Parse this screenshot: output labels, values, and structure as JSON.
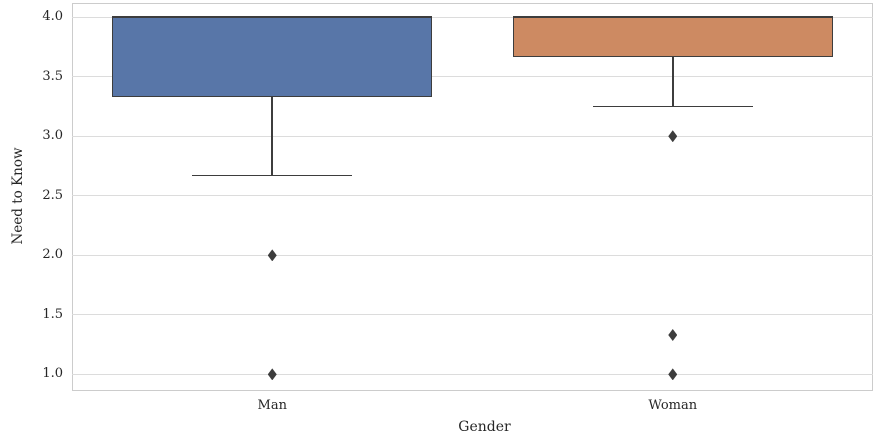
{
  "chart_data": {
    "type": "box",
    "title": "",
    "xlabel": "Gender",
    "ylabel": "Need to Know",
    "categories": [
      "Man",
      "Woman"
    ],
    "ylim": [
      0.86,
      4.12
    ],
    "yticks": [
      {
        "label": "1.0",
        "value": 1.0
      },
      {
        "label": "1.5",
        "value": 1.5
      },
      {
        "label": "2.0",
        "value": 2.0
      },
      {
        "label": "2.5",
        "value": 2.5
      },
      {
        "label": "3.0",
        "value": 3.0
      },
      {
        "label": "3.5",
        "value": 3.5
      },
      {
        "label": "4.0",
        "value": 4.0
      }
    ],
    "grid": "horizontal",
    "legend": "none",
    "series": [
      {
        "name": "Man",
        "q1": 3.33,
        "median": 4.0,
        "q3": 4.0,
        "whisker_low": 2.67,
        "whisker_high": 4.0,
        "outliers": [
          2.0,
          1.0
        ],
        "fill_color": "#5876a8"
      },
      {
        "name": "Woman",
        "q1": 3.67,
        "median": 4.0,
        "q3": 4.0,
        "whisker_low": 3.25,
        "whisker_high": 4.0,
        "outliers": [
          3.0,
          1.33,
          1.0
        ],
        "fill_color": "#cd8a62"
      }
    ],
    "colors": {
      "line": "#3d3d3d",
      "grid": "#dcdcdc",
      "spine": "#cccccc",
      "text": "#262626",
      "background": "#ffffff"
    }
  }
}
